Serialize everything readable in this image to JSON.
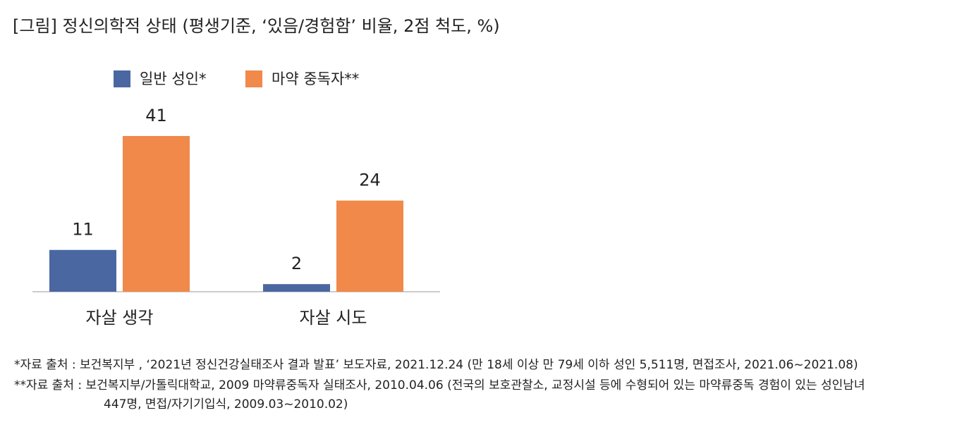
{
  "chart_data": {
    "type": "bar",
    "title": "[그림] 정신의학적 상태 (평생기준, ‘있음/경험함’ 비율, 2점 척도, %)",
    "categories": [
      "자살 생각",
      "자살 시도"
    ],
    "series": [
      {
        "name": "일반 성인*",
        "color": "#4a67a1",
        "values": [
          11,
          2
        ]
      },
      {
        "name": "마약 중독자**",
        "color": "#f0894a",
        "values": [
          41,
          24
        ]
      }
    ],
    "legend": "top",
    "notes": [
      "*자료 출처 : 보건복지부 , ‘2021년 정신건강실태조사 결과 발표’ 보도자료, 2021.12.24 (만 18세 이상 만 79세 이하 성인 5,511명, 면접조사, 2021.06~2021.08)",
      "**자료 출처 : 보건복지부/가톨릭대학교, 2009 마약류중독자 실태조사, 2010.04.06 (전국의 보호관찰소, 교정시설 등에 수형되어 있는 마약류중독 경험이 있는 성인남녀",
      "447명, 면접/자기기입식, 2009.03~2010.02)"
    ]
  }
}
